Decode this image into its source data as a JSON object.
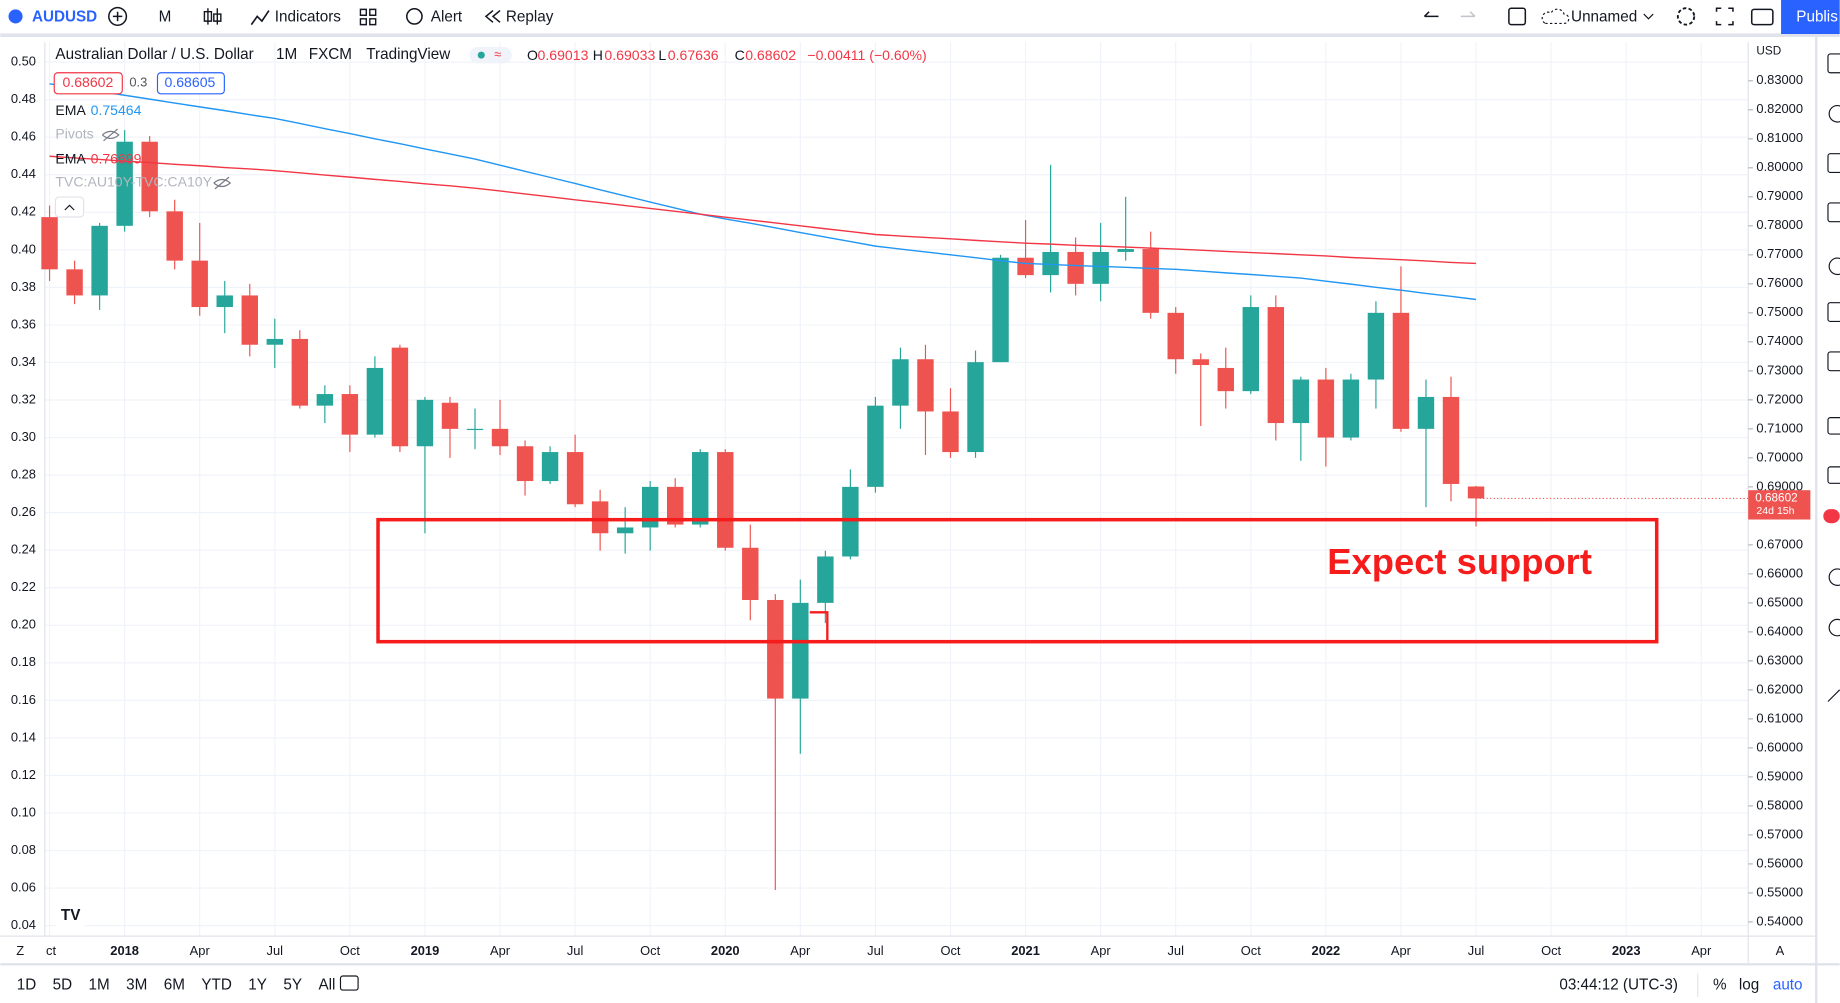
{
  "toolbar": {
    "symbol": "AUDUSD",
    "interval": "M",
    "indicators": "Indicators",
    "alert": "Alert",
    "replay": "Replay",
    "layout": "Unnamed",
    "publish": "Publis"
  },
  "legend": {
    "title": "Australian Dollar / U.S. Dollar",
    "interval": "1M",
    "exchange": "FXCM",
    "source": "TradingView",
    "open_label": "O",
    "open": "0.69013",
    "high_label": "H",
    "high": "0.69033",
    "low_label": "L",
    "low": "0.67636",
    "close_label": "C",
    "close": "0.68602",
    "change": "−0.00411 (−0.60%)",
    "bid": "0.68602",
    "spread": "0.3",
    "ask": "0.68605",
    "indicators": [
      {
        "name": "EMA",
        "value": "0.75464"
      },
      {
        "name": "Pivots"
      },
      {
        "name": "EMA",
        "value": "0.76699"
      },
      {
        "name": "TVC:AU10Y-TVC:CA10Y"
      }
    ]
  },
  "chart_data": {
    "type": "candlestick",
    "categories": [
      "ct",
      null,
      null,
      "2018",
      null,
      null,
      "Apr",
      null,
      null,
      "Jul",
      null,
      null,
      "Oct",
      null,
      null,
      "2019",
      null,
      null,
      "Apr",
      null,
      null,
      "Jul",
      null,
      null,
      "Oct",
      null,
      null,
      "2020",
      null,
      null,
      "Apr",
      null,
      null,
      "Jul",
      null,
      null,
      "Oct",
      null,
      null,
      "2021",
      null,
      null,
      "Apr",
      null,
      null,
      "Jul",
      null,
      null,
      "Oct",
      null,
      null,
      "2022",
      null,
      null,
      "Apr",
      null,
      null,
      "Jul",
      null,
      null,
      "Oct",
      null,
      null,
      "2023",
      null,
      null,
      "Apr"
    ],
    "open": [
      0.783,
      0.765,
      0.756,
      0.78,
      0.809,
      0.785,
      0.768,
      0.752,
      0.756,
      0.739,
      0.741,
      0.718,
      0.722,
      0.708,
      0.738,
      0.704,
      0.719,
      0.71,
      0.71,
      0.704,
      0.692,
      0.702,
      0.685,
      0.674,
      0.676,
      0.69,
      0.677,
      0.702,
      0.669,
      0.651,
      0.617,
      0.65,
      0.666,
      0.69,
      0.718,
      0.734,
      0.716,
      0.702,
      0.733,
      0.769,
      0.763,
      0.771,
      0.76,
      0.771,
      0.772,
      0.75,
      0.734,
      0.731,
      0.723,
      0.752,
      0.712,
      0.727,
      0.707,
      0.727,
      0.75,
      0.71,
      0.721,
      0.69013,
      null,
      null,
      null,
      null,
      null,
      null,
      null,
      null,
      null
    ],
    "high": [
      0.787,
      0.768,
      0.781,
      0.813,
      0.811,
      0.789,
      0.781,
      0.761,
      0.76,
      0.748,
      0.744,
      0.725,
      0.725,
      0.735,
      0.739,
      0.721,
      0.721,
      0.717,
      0.72,
      0.706,
      0.704,
      0.708,
      0.689,
      0.683,
      0.692,
      0.693,
      0.703,
      0.703,
      0.677,
      0.653,
      0.658,
      0.668,
      0.696,
      0.721,
      0.738,
      0.739,
      0.724,
      0.737,
      0.77,
      0.782,
      0.801,
      0.776,
      0.781,
      0.79,
      0.778,
      0.752,
      0.736,
      0.738,
      0.756,
      0.756,
      0.728,
      0.731,
      0.729,
      0.754,
      0.766,
      0.727,
      0.728,
      0.69033,
      null,
      null,
      null,
      null,
      null,
      null,
      null,
      null,
      null
    ],
    "low": [
      0.761,
      0.753,
      0.751,
      0.778,
      0.783,
      0.765,
      0.749,
      0.743,
      0.735,
      0.731,
      0.717,
      0.712,
      0.702,
      0.707,
      0.702,
      0.674,
      0.7,
      0.703,
      0.701,
      0.687,
      0.691,
      0.683,
      0.668,
      0.667,
      0.668,
      0.676,
      0.676,
      0.668,
      0.644,
      0.551,
      0.598,
      0.643,
      0.665,
      0.688,
      0.71,
      0.701,
      0.7,
      0.7,
      0.733,
      0.762,
      0.757,
      0.756,
      0.754,
      0.768,
      0.748,
      0.729,
      0.711,
      0.717,
      0.722,
      0.706,
      0.699,
      0.697,
      0.706,
      0.717,
      0.709,
      0.683,
      0.685,
      0.67636,
      null,
      null,
      null,
      null,
      null,
      null,
      null,
      null,
      null
    ],
    "close": [
      0.765,
      0.756,
      0.78,
      0.809,
      0.785,
      0.768,
      0.752,
      0.756,
      0.739,
      0.741,
      0.718,
      0.722,
      0.708,
      0.731,
      0.704,
      0.72,
      0.71,
      0.71,
      0.704,
      0.692,
      0.702,
      0.684,
      0.674,
      0.676,
      0.69,
      0.677,
      0.702,
      0.669,
      0.651,
      0.617,
      0.65,
      0.666,
      0.69,
      0.718,
      0.734,
      0.716,
      0.702,
      0.733,
      0.769,
      0.763,
      0.771,
      0.76,
      0.771,
      0.772,
      0.75,
      0.734,
      0.732,
      0.723,
      0.752,
      0.712,
      0.727,
      0.707,
      0.727,
      0.75,
      0.71,
      0.721,
      0.691,
      0.68602,
      null,
      null,
      null,
      null,
      null,
      null,
      null,
      null,
      null
    ],
    "up_color": "#26a69a",
    "down_color": "#ef5350",
    "series": [
      {
        "name": "EMA",
        "color": "#2196f3",
        "values": [
          0.829,
          0.8277,
          0.8263,
          0.825,
          0.8237,
          0.8223,
          0.821,
          0.8197,
          0.8183,
          0.817,
          0.8153,
          0.8135,
          0.8118,
          0.81,
          0.8083,
          0.8065,
          0.8048,
          0.803,
          0.8009,
          0.7988,
          0.7967,
          0.7946,
          0.7924,
          0.7903,
          0.7882,
          0.7861,
          0.784,
          0.7824,
          0.7809,
          0.7793,
          0.7777,
          0.7761,
          0.7746,
          0.773,
          0.772,
          0.771,
          0.77,
          0.769,
          0.768,
          0.767,
          0.7667,
          0.7663,
          0.766,
          0.7657,
          0.7653,
          0.765,
          0.7644,
          0.7638,
          0.7632,
          0.7626,
          0.762,
          0.7609,
          0.7599,
          0.7588,
          0.7578,
          0.7567,
          0.7557,
          0.7546,
          null,
          null,
          null,
          null,
          null,
          null,
          null,
          null,
          null
        ]
      },
      {
        "name": "EMA",
        "color": "#f23645",
        "values": [
          0.804,
          0.8034,
          0.8029,
          0.8023,
          0.8018,
          0.8012,
          0.8007,
          0.8001,
          0.7996,
          0.799,
          0.7983,
          0.7975,
          0.7968,
          0.796,
          0.7953,
          0.7945,
          0.7938,
          0.793,
          0.792,
          0.791,
          0.79,
          0.789,
          0.788,
          0.787,
          0.786,
          0.785,
          0.784,
          0.783,
          0.782,
          0.781,
          0.78,
          0.779,
          0.778,
          0.777,
          0.7765,
          0.776,
          0.7755,
          0.775,
          0.7745,
          0.774,
          0.7737,
          0.7733,
          0.773,
          0.7727,
          0.7723,
          0.772,
          0.7716,
          0.7712,
          0.7708,
          0.7704,
          0.77,
          0.7696,
          0.7691,
          0.7687,
          0.7683,
          0.7679,
          0.7674,
          0.767,
          null,
          null,
          null,
          null,
          null,
          null,
          null,
          null,
          null
        ]
      }
    ],
    "currency": "USD",
    "countdown": "24d 15h",
    "annotation": "Expect support",
    "ylim": [
      0.5351,
      0.8433
    ],
    "yticks": [
      {
        "value": 0.54,
        "label": "0.54000"
      },
      {
        "value": 0.55,
        "label": "0.55000"
      },
      {
        "value": 0.56,
        "label": "0.56000"
      },
      {
        "value": 0.57,
        "label": "0.57000"
      },
      {
        "value": 0.58,
        "label": "0.58000"
      },
      {
        "value": 0.59,
        "label": "0.59000"
      },
      {
        "value": 0.6,
        "label": "0.60000"
      },
      {
        "value": 0.61,
        "label": "0.61000"
      },
      {
        "value": 0.62,
        "label": "0.62000"
      },
      {
        "value": 0.63,
        "label": "0.63000"
      },
      {
        "value": 0.64,
        "label": "0.64000"
      },
      {
        "value": 0.65,
        "label": "0.65000"
      },
      {
        "value": 0.66,
        "label": "0.66000"
      },
      {
        "value": 0.67,
        "label": "0.67000"
      },
      {
        "value": 0.68,
        "label": "0.68000"
      },
      {
        "value": 0.69,
        "label": "0.69000"
      },
      {
        "value": 0.7,
        "label": "0.70000"
      },
      {
        "value": 0.71,
        "label": "0.71000"
      },
      {
        "value": 0.72,
        "label": "0.72000"
      },
      {
        "value": 0.73,
        "label": "0.73000"
      },
      {
        "value": 0.74,
        "label": "0.74000"
      },
      {
        "value": 0.75,
        "label": "0.75000"
      },
      {
        "value": 0.76,
        "label": "0.76000"
      },
      {
        "value": 0.77,
        "label": "0.77000"
      },
      {
        "value": 0.78,
        "label": "0.78000"
      },
      {
        "value": 0.79,
        "label": "0.79000"
      },
      {
        "value": 0.8,
        "label": "0.80000"
      },
      {
        "value": 0.81,
        "label": "0.81000"
      },
      {
        "value": 0.82,
        "label": "0.82000"
      },
      {
        "value": 0.83,
        "label": "0.83000"
      }
    ],
    "y2lim": [
      0.0344,
      0.5106
    ],
    "y2ticks": [
      {
        "value": 0.04,
        "label": "0.04"
      },
      {
        "value": 0.06,
        "label": "0.06"
      },
      {
        "value": 0.08,
        "label": "0.08"
      },
      {
        "value": 0.1,
        "label": "0.10"
      },
      {
        "value": 0.12,
        "label": "0.12"
      },
      {
        "value": 0.14,
        "label": "0.14"
      },
      {
        "value": 0.16,
        "label": "0.16"
      },
      {
        "value": 0.18,
        "label": "0.18"
      },
      {
        "value": 0.2,
        "label": "0.20"
      },
      {
        "value": 0.22,
        "label": "0.22"
      },
      {
        "value": 0.24,
        "label": "0.24"
      },
      {
        "value": 0.26,
        "label": "0.26"
      },
      {
        "value": 0.28,
        "label": "0.28"
      },
      {
        "value": 0.3,
        "label": "0.30"
      },
      {
        "value": 0.32,
        "label": "0.32"
      },
      {
        "value": 0.34,
        "label": "0.34"
      },
      {
        "value": 0.36,
        "label": "0.36"
      },
      {
        "value": 0.38,
        "label": "0.38"
      },
      {
        "value": 0.4,
        "label": "0.40"
      },
      {
        "value": 0.42,
        "label": "0.42"
      },
      {
        "value": 0.44,
        "label": "0.44"
      },
      {
        "value": 0.46,
        "label": "0.46"
      },
      {
        "value": 0.48,
        "label": "0.48"
      },
      {
        "value": 0.5,
        "label": "0.50"
      }
    ],
    "grid": true
  },
  "bottom_bar": {
    "ranges": [
      "1D",
      "5D",
      "1M",
      "3M",
      "6M",
      "YTD",
      "1Y",
      "5Y",
      "All"
    ],
    "time": "03:44:12 (UTC-3)",
    "percent": "%",
    "log": "log",
    "auto": "auto"
  }
}
